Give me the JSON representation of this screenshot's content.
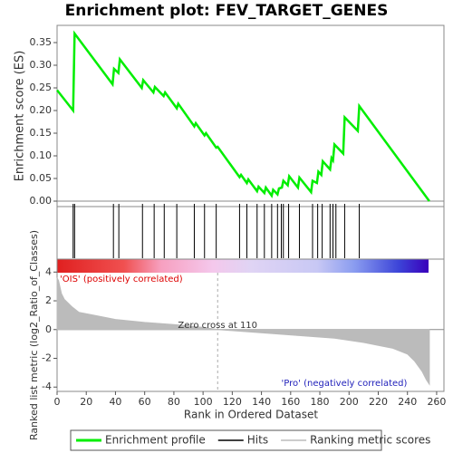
{
  "chart_data": {
    "type": "gsea",
    "title": "Enrichment plot: FEV_TARGET_GENES",
    "es_ylabel": "Enrichment score (ES)",
    "metric_ylabel": "Ranked list metric (log2_Ratio_of_Classes)",
    "xlabel": "Rank in Ordered Dataset",
    "xlim": [
      0,
      265
    ],
    "xticks": [
      0,
      20,
      40,
      60,
      80,
      100,
      120,
      140,
      160,
      180,
      200,
      220,
      240,
      260
    ],
    "ylim": [
      -0.012,
      0.388
    ],
    "yticks": [
      {
        "value": 0,
        "label": "0.00"
      },
      {
        "value": 0.05,
        "label": "0.05"
      },
      {
        "value": 0.1,
        "label": "0.10"
      },
      {
        "value": 0.15,
        "label": "0.15"
      },
      {
        "value": 0.2,
        "label": "0.20"
      },
      {
        "value": 0.25,
        "label": "0.25"
      },
      {
        "value": 0.3,
        "label": "0.30"
      },
      {
        "value": 0.35,
        "label": "0.35"
      }
    ],
    "y2lim": [
      -4.3,
      4.9
    ],
    "y2ticks": [
      4,
      2,
      0,
      -2,
      -4
    ],
    "series": [
      {
        "name": "Enrichment profile",
        "color": "#00ee00",
        "x": [
          0,
          11,
          12,
          38,
          39,
          42,
          43,
          58,
          59,
          66,
          67,
          73,
          74,
          82,
          83,
          94,
          95,
          101,
          102,
          109,
          110,
          125,
          126,
          130,
          131,
          137,
          138,
          142,
          143,
          147,
          148,
          151,
          152,
          154,
          155,
          158,
          159,
          165,
          166,
          174,
          175,
          178,
          179,
          181,
          182,
          187,
          188,
          189,
          190,
          196,
          197,
          206,
          207,
          255
        ],
        "values": [
          0.245,
          0.2,
          0.37,
          0.258,
          0.292,
          0.283,
          0.313,
          0.25,
          0.267,
          0.24,
          0.252,
          0.232,
          0.24,
          0.205,
          0.215,
          0.165,
          0.172,
          0.145,
          0.15,
          0.118,
          0.12,
          0.053,
          0.058,
          0.04,
          0.048,
          0.022,
          0.032,
          0.018,
          0.03,
          0.012,
          0.025,
          0.015,
          0.028,
          0.03,
          0.045,
          0.035,
          0.055,
          0.03,
          0.052,
          0.02,
          0.045,
          0.04,
          0.065,
          0.058,
          0.088,
          0.07,
          0.095,
          0.09,
          0.125,
          0.105,
          0.185,
          0.155,
          0.21,
          0
        ]
      },
      {
        "name": "Hits",
        "color": "#000000",
        "x": [
          11,
          12,
          38.6,
          42.3,
          58.5,
          66.5,
          73.4,
          82,
          94,
          101,
          109,
          125,
          130,
          137,
          142,
          147,
          151,
          153.6,
          155,
          158.6,
          166,
          175,
          178.5,
          181.6,
          187,
          189,
          191,
          197,
          207
        ]
      },
      {
        "name": "Ranking metric scores",
        "color": "#bbbbbb",
        "axis": "y2",
        "x": [
          0,
          1,
          3,
          5,
          10,
          15,
          25,
          40,
          60,
          80,
          100,
          110,
          130,
          150,
          170,
          190,
          210,
          230,
          240,
          245,
          250,
          253,
          255
        ],
        "values": [
          3.6,
          3.4,
          2.5,
          2.1,
          1.6,
          1.2,
          1.0,
          0.7,
          0.5,
          0.35,
          0.15,
          0,
          -0.15,
          -0.3,
          -0.45,
          -0.6,
          -0.9,
          -1.3,
          -1.7,
          -2.2,
          -2.9,
          -3.5,
          -3.8
        ]
      }
    ],
    "zero_cross": {
      "value": 110,
      "label": "Zero cross at 110"
    },
    "pos_label": "'OIS' (positively correlated)",
    "neg_label": "'Pro' (negatively correlated)"
  }
}
